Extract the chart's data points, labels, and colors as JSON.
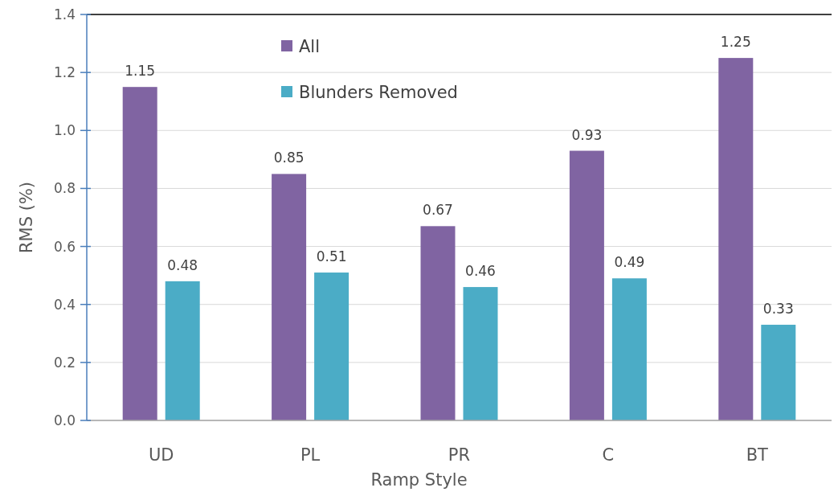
{
  "chart_data": {
    "type": "bar",
    "xlabel": "Ramp Style",
    "ylabel": "RMS (%)",
    "categories": [
      "UD",
      "PL",
      "PR",
      "C",
      "BT"
    ],
    "series": [
      {
        "name": "All",
        "color": "#8064a2",
        "values": [
          1.15,
          0.85,
          0.67,
          0.93,
          1.25
        ]
      },
      {
        "name": "Blunders Removed",
        "color": "#4bacc6",
        "values": [
          0.48,
          0.51,
          0.46,
          0.49,
          0.33
        ]
      }
    ],
    "ylim": [
      0,
      1.4
    ],
    "yticks": [
      {
        "value": 0,
        "label": "0.0"
      },
      {
        "value": 0.2,
        "label": "0.2"
      },
      {
        "value": 0.4,
        "label": "0.4"
      },
      {
        "value": 0.6,
        "label": "0.6"
      },
      {
        "value": 0.8,
        "label": "0.8"
      },
      {
        "value": 1.0,
        "label": "1.0"
      },
      {
        "value": 1.2,
        "label": "1.2"
      },
      {
        "value": 1.4,
        "label": "1.4"
      }
    ],
    "grid": "y",
    "legend": "top",
    "data_labels": true
  }
}
